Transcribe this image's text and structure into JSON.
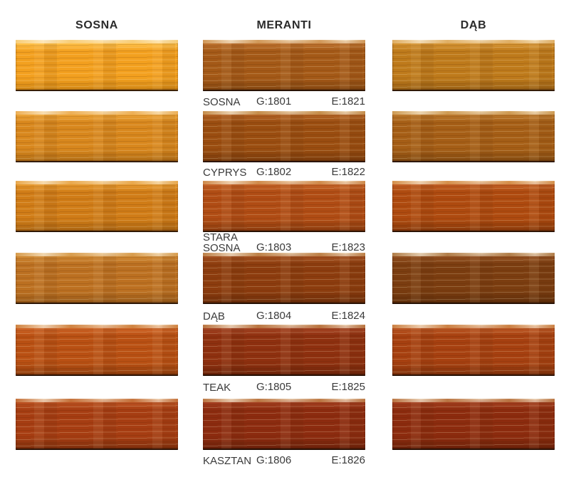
{
  "page": {
    "background": "#ffffff",
    "text_color": "#3a3a3a"
  },
  "columns": [
    {
      "id": "sosna",
      "header": "SOSNA",
      "swatches": [
        {
          "colors": {
            "edge": "#f7ce7a",
            "light": "#ffc14a",
            "base": "#f3a01f",
            "dark": "#a36508"
          }
        },
        {
          "colors": {
            "edge": "#edb057",
            "light": "#eda437",
            "base": "#d8871d",
            "dark": "#7e4c0c"
          }
        },
        {
          "colors": {
            "edge": "#e9a94e",
            "light": "#e79a2f",
            "base": "#d07c17",
            "dark": "#7a480c"
          }
        },
        {
          "colors": {
            "edge": "#d89d4e",
            "light": "#d08934",
            "base": "#bc7021",
            "dark": "#6b3f10"
          }
        },
        {
          "colors": {
            "edge": "#d08441",
            "light": "#cf6527",
            "base": "#b95013",
            "dark": "#5c2706"
          }
        },
        {
          "colors": {
            "edge": "#c47038",
            "light": "#bc5222",
            "base": "#a63d12",
            "dark": "#4e1c05"
          }
        }
      ]
    },
    {
      "id": "meranti",
      "header": "MERANTI",
      "swatches": [
        {
          "label": "SOSNA",
          "g_code": "G:1801",
          "e_code": "E:1821",
          "colors": {
            "edge": "#d29a5a",
            "light": "#be7330",
            "base": "#a45917",
            "dark": "#5a2e08"
          }
        },
        {
          "label": "CYPRYS",
          "g_code": "G:1802",
          "e_code": "E:1822",
          "colors": {
            "edge": "#c68f4c",
            "light": "#b46527",
            "base": "#9a4d10",
            "dark": "#512506"
          }
        },
        {
          "label": "STARA\nSOSNA",
          "g_code": "G:1803",
          "e_code": "E:1823",
          "colors": {
            "edge": "#d08c4c",
            "light": "#c56429",
            "base": "#b04c14",
            "dark": "#5a2506"
          }
        },
        {
          "label": "DĄB",
          "g_code": "G:1804",
          "e_code": "E:1824",
          "colors": {
            "edge": "#be8248",
            "light": "#a55222",
            "base": "#8c3c0e",
            "dark": "#471d05"
          }
        },
        {
          "label": "TEAK",
          "g_code": "G:1805",
          "e_code": "E:1825",
          "colors": {
            "edge": "#ba7640",
            "light": "#a64524",
            "base": "#8e300f",
            "dark": "#451605"
          }
        },
        {
          "label": "KASZTAN",
          "g_code": "G:1806",
          "e_code": "E:1826",
          "colors": {
            "edge": "#bc7842",
            "light": "#a43f20",
            "base": "#8c2b0f",
            "dark": "#431505"
          }
        }
      ]
    },
    {
      "id": "dab",
      "header": "DĄB",
      "swatches": [
        {
          "colors": {
            "edge": "#e0b067",
            "light": "#d69534",
            "base": "#be7a1b",
            "dark": "#693f0c"
          }
        },
        {
          "colors": {
            "edge": "#cf9c54",
            "light": "#bc7a2e",
            "base": "#a55e16",
            "dark": "#563008"
          }
        },
        {
          "colors": {
            "edge": "#d6924c",
            "light": "#c26026",
            "base": "#ae4a0f",
            "dark": "#582304"
          }
        },
        {
          "colors": {
            "edge": "#b27f4a",
            "light": "#945122",
            "base": "#7b3d10",
            "dark": "#3e1c04"
          }
        },
        {
          "colors": {
            "edge": "#cc8244",
            "light": "#bc5724",
            "base": "#a64010",
            "dark": "#511f07"
          }
        },
        {
          "colors": {
            "edge": "#ba7642",
            "light": "#a43f1f",
            "base": "#8c2b0e",
            "dark": "#431504"
          }
        }
      ]
    }
  ]
}
